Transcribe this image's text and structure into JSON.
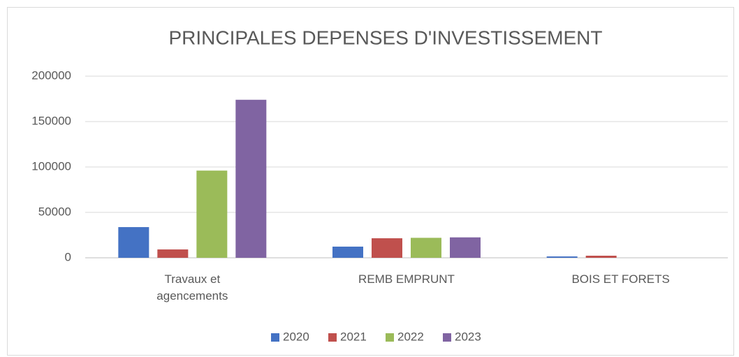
{
  "chart_data": {
    "type": "bar",
    "title": "PRINCIPALES DEPENSES D'INVESTISSEMENT",
    "categories": [
      "Travaux et agencements",
      "REMB EMPRUNT",
      "BOIS ET FORETS"
    ],
    "series": [
      {
        "name": "2020",
        "color": "#4472c4",
        "values": [
          33800,
          12300,
          1500
        ]
      },
      {
        "name": "2021",
        "color": "#c0504d",
        "values": [
          9200,
          21500,
          2300
        ]
      },
      {
        "name": "2022",
        "color": "#9bbb59",
        "values": [
          96000,
          22000,
          0
        ]
      },
      {
        "name": "2023",
        "color": "#8064a2",
        "values": [
          174000,
          22500,
          0
        ]
      }
    ],
    "ylim": [
      0,
      200000
    ],
    "yticks": [
      0,
      50000,
      100000,
      150000,
      200000
    ],
    "grid": true,
    "legend": "bottom"
  }
}
